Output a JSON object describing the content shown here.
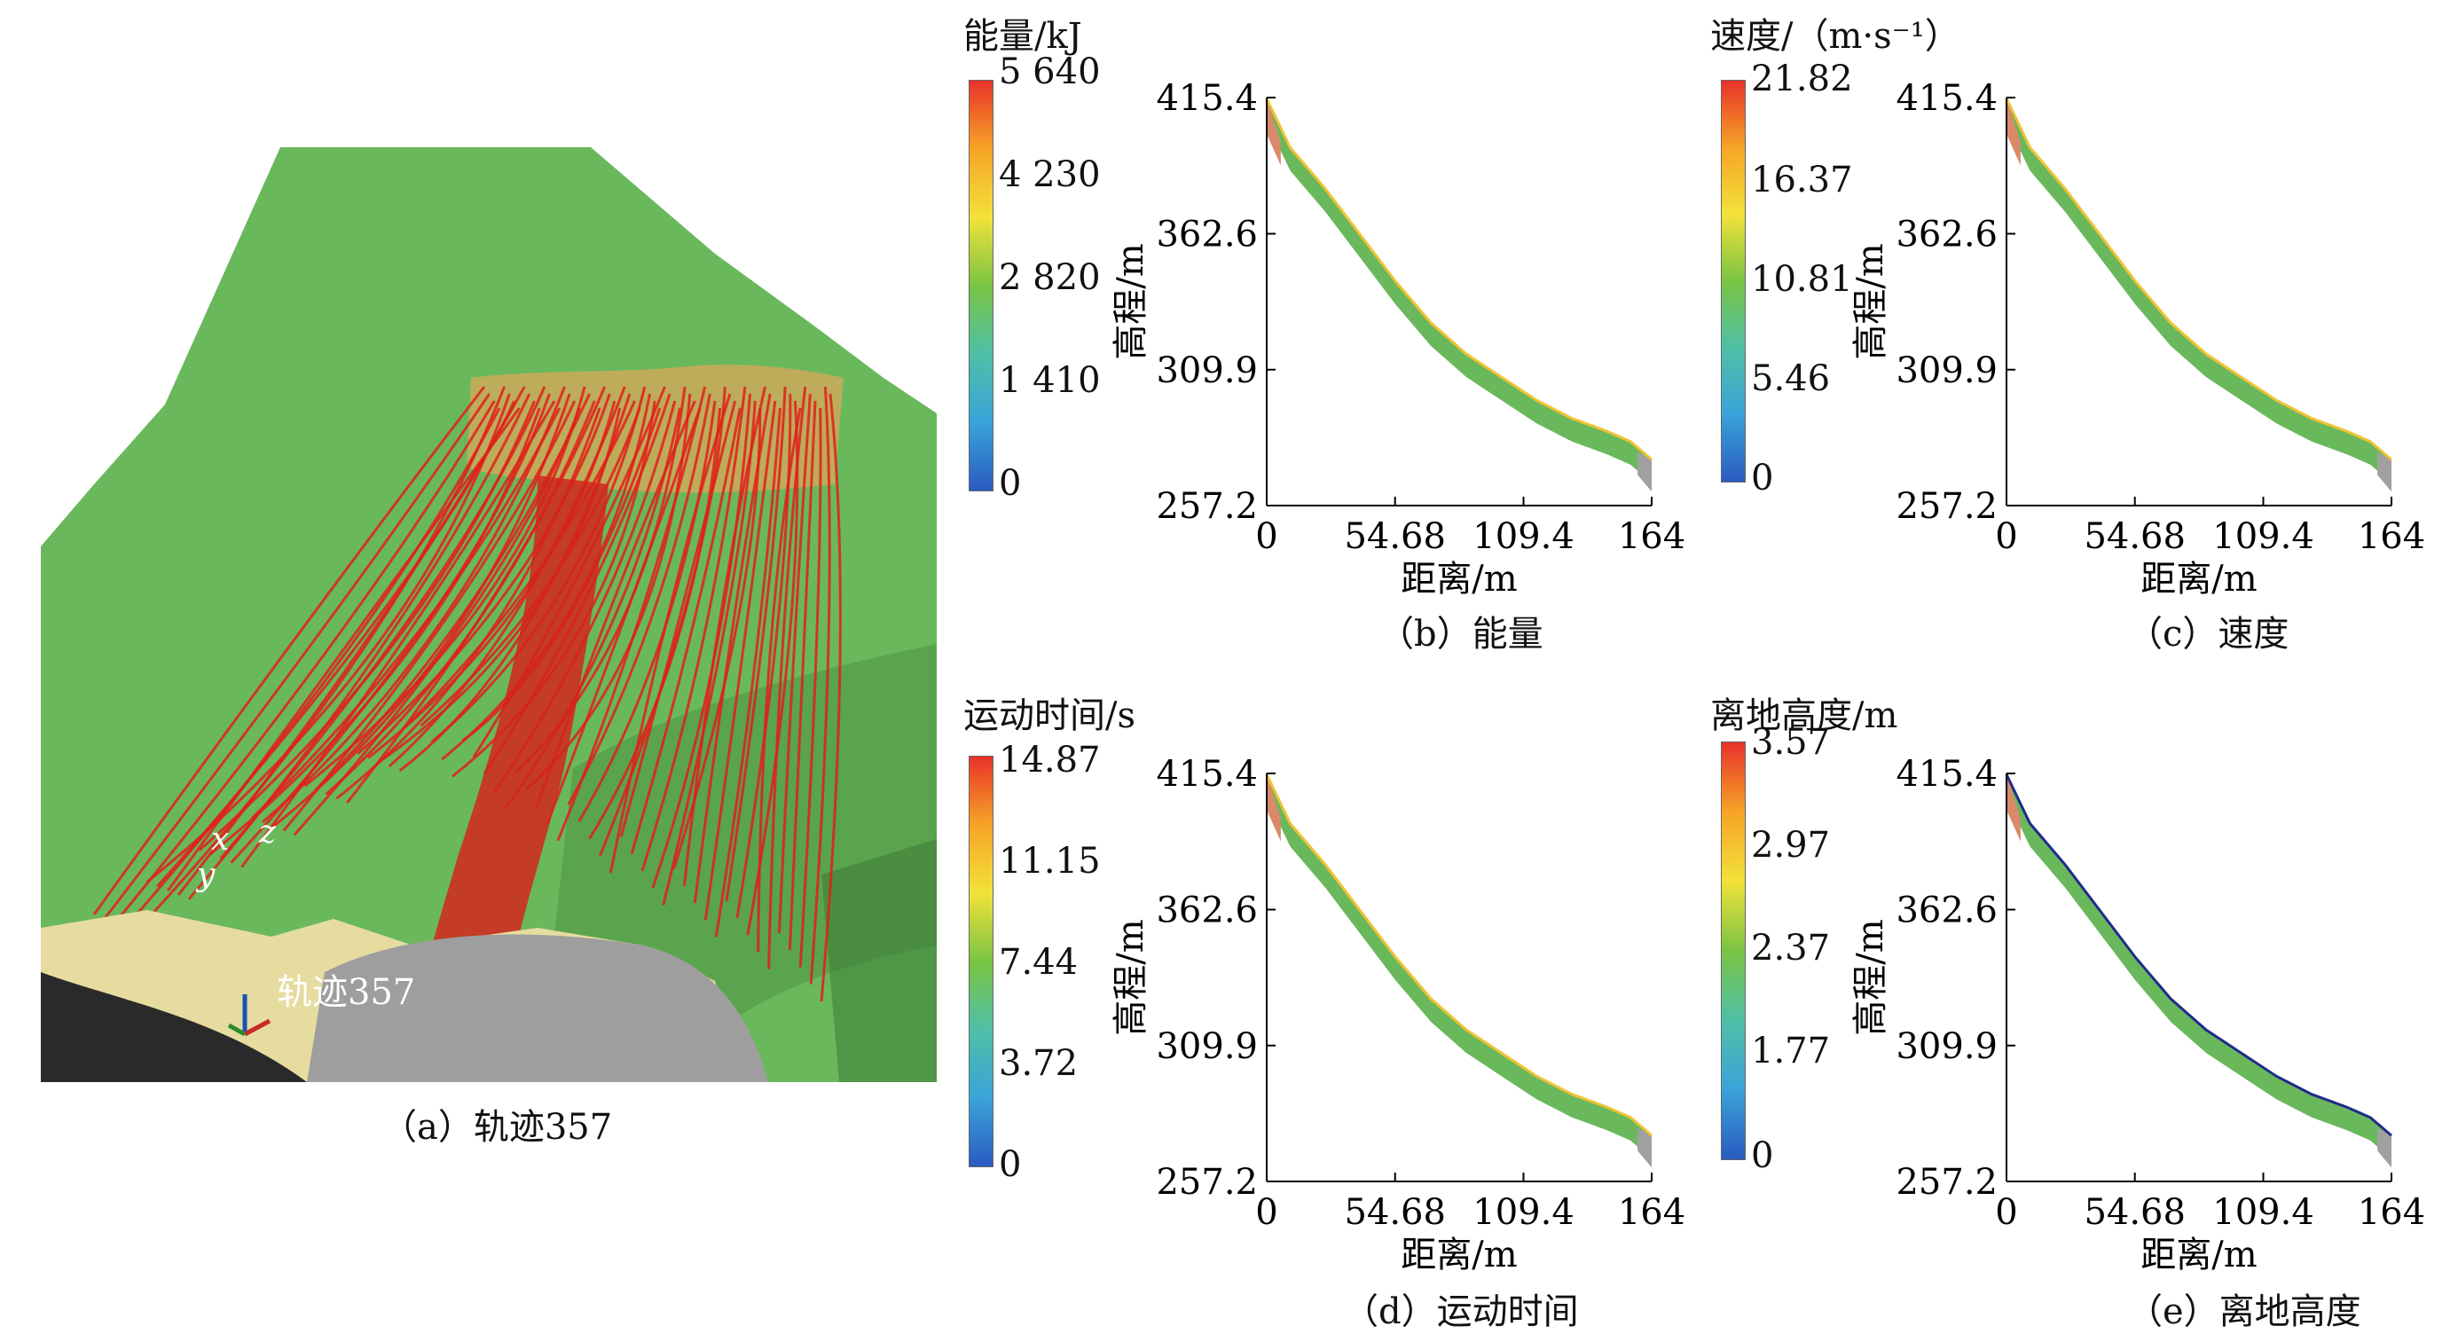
{
  "figure": {
    "scene_caption": "（a）轨迹357",
    "scene_label": "轨迹357",
    "axes_triad": {
      "x": "x",
      "y": "y",
      "z": "z"
    },
    "colors": {
      "terrain": "#6ab85c",
      "terrain_shadow": "#4d9443",
      "trajectory": "#e0201a",
      "rock": "#9e9e9e",
      "sand": "#e6dca0",
      "dark": "#2a2a2a"
    }
  },
  "panels": [
    {
      "id": "b",
      "caption": "（b）能量",
      "colorbar_title": "能量/kJ",
      "colorbar_ticks": [
        "5 640",
        "4 230",
        "2 820",
        "1 410",
        "0"
      ],
      "colorbar_range": [
        0,
        5640
      ]
    },
    {
      "id": "c",
      "caption": "（c）速度",
      "colorbar_title": "速度/（m·s⁻¹）",
      "colorbar_ticks": [
        "21.82",
        "16.37",
        "10.81",
        "5.46",
        "0"
      ],
      "colorbar_range": [
        0,
        21.82
      ]
    },
    {
      "id": "d",
      "caption": "（d）运动时间",
      "colorbar_title": "运动时间/s",
      "colorbar_ticks": [
        "14.87",
        "11.15",
        "7.44",
        "3.72",
        "0"
      ],
      "colorbar_range": [
        0,
        14.87
      ]
    },
    {
      "id": "e",
      "caption": "（e）离地高度",
      "colorbar_title": "离地高度/m",
      "colorbar_ticks": [
        "3.57",
        "2.97",
        "2.37",
        "1.77",
        "0"
      ],
      "colorbar_range": [
        0,
        3.57
      ]
    }
  ],
  "chart_data": [
    {
      "type": "area",
      "panel": "b",
      "xlabel": "距离/m",
      "ylabel": "高程/m",
      "xticks": [
        "0",
        "54.68",
        "109.4",
        "164"
      ],
      "yticks": [
        "415.4",
        "362.6",
        "309.9",
        "257.2"
      ],
      "xlim": [
        0,
        164
      ],
      "ylim": [
        257.2,
        415.4
      ],
      "profile": {
        "x": [
          0,
          10,
          25,
          40,
          55,
          70,
          85,
          100,
          115,
          130,
          145,
          155,
          164
        ],
        "y": [
          415,
          396,
          380,
          362,
          344,
          328,
          316,
          307,
          298,
          291,
          286,
          282,
          275
        ]
      }
    },
    {
      "type": "area",
      "panel": "c",
      "xlabel": "距离/m",
      "ylabel": "高程/m",
      "xticks": [
        "0",
        "54.68",
        "109.4",
        "164"
      ],
      "yticks": [
        "415.4",
        "362.6",
        "309.9",
        "257.2"
      ],
      "xlim": [
        0,
        164
      ],
      "ylim": [
        257.2,
        415.4
      ],
      "profile": {
        "x": [
          0,
          10,
          25,
          40,
          55,
          70,
          85,
          100,
          115,
          130,
          145,
          155,
          164
        ],
        "y": [
          415,
          396,
          380,
          362,
          344,
          328,
          316,
          307,
          298,
          291,
          286,
          282,
          275
        ]
      }
    },
    {
      "type": "area",
      "panel": "d",
      "xlabel": "距离/m",
      "ylabel": "高程/m",
      "xticks": [
        "0",
        "54.68",
        "109.4",
        "164"
      ],
      "yticks": [
        "415.4",
        "362.6",
        "309.9",
        "257.2"
      ],
      "xlim": [
        0,
        164
      ],
      "ylim": [
        257.2,
        415.4
      ],
      "profile": {
        "x": [
          0,
          10,
          25,
          40,
          55,
          70,
          85,
          100,
          115,
          130,
          145,
          155,
          164
        ],
        "y": [
          415,
          396,
          380,
          362,
          344,
          328,
          316,
          307,
          298,
          291,
          286,
          282,
          275
        ]
      }
    },
    {
      "type": "area",
      "panel": "e",
      "xlabel": "距离/m",
      "ylabel": "高程/m",
      "xticks": [
        "0",
        "54.68",
        "109.4",
        "164"
      ],
      "yticks": [
        "415.4",
        "362.6",
        "309.9",
        "257.2"
      ],
      "xlim": [
        0,
        164
      ],
      "ylim": [
        257.2,
        415.4
      ],
      "profile": {
        "x": [
          0,
          10,
          25,
          40,
          55,
          70,
          85,
          100,
          115,
          130,
          145,
          155,
          164
        ],
        "y": [
          415,
          396,
          380,
          362,
          344,
          328,
          316,
          307,
          298,
          291,
          286,
          282,
          275
        ]
      }
    }
  ]
}
